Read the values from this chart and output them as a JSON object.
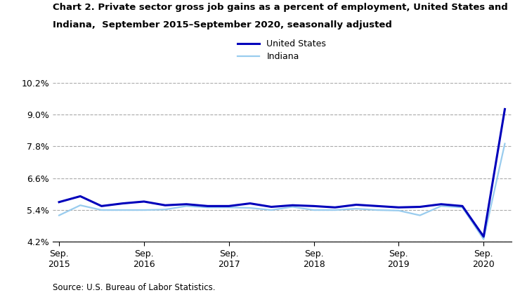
{
  "title_line1": "Chart 2. Private sector gross job gains as a percent of employment, United States and",
  "title_line2": "Indiana,  September 2015–September 2020, seasonally adjusted",
  "source": "Source: U.S. Bureau of Labor Statistics.",
  "legend_labels": [
    "United States",
    "Indiana"
  ],
  "us_color": "#0000BB",
  "indiana_color": "#99CCEE",
  "us_linewidth": 2.2,
  "indiana_linewidth": 1.6,
  "ylim": [
    4.2,
    10.2
  ],
  "yticks": [
    4.2,
    5.4,
    6.6,
    7.8,
    9.0,
    10.2
  ],
  "ytick_labels": [
    "4.2%",
    "5.4%",
    "6.6%",
    "7.8%",
    "9.0%",
    "10.2%"
  ],
  "x_labels": [
    "Sep.\n2015",
    "Sep.\n2016",
    "Sep.\n2017",
    "Sep.\n2018",
    "Sep.\n2019",
    "Sep.\n2020"
  ],
  "x_positions": [
    0,
    4,
    8,
    12,
    16,
    20
  ],
  "us_data": [
    5.7,
    5.92,
    5.55,
    5.65,
    5.72,
    5.58,
    5.62,
    5.55,
    5.55,
    5.65,
    5.52,
    5.58,
    5.55,
    5.5,
    5.6,
    5.55,
    5.5,
    5.52,
    5.62,
    5.55,
    4.4,
    9.2
  ],
  "indiana_data": [
    5.2,
    5.58,
    5.4,
    5.4,
    5.4,
    5.42,
    5.55,
    5.5,
    5.5,
    5.48,
    5.4,
    5.52,
    5.4,
    5.4,
    5.45,
    5.4,
    5.38,
    5.2,
    5.55,
    5.5,
    4.3,
    7.9
  ],
  "background_color": "#ffffff",
  "grid_color": "#aaaaaa",
  "grid_linestyle": "--",
  "grid_linewidth": 0.8
}
